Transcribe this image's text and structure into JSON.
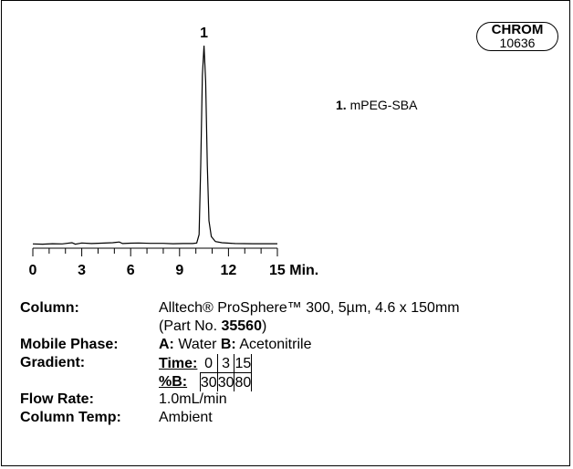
{
  "chart_data": {
    "type": "line",
    "xlabel": "",
    "x_unit": "Min.",
    "xlim": [
      0,
      15
    ],
    "xticks": [
      0,
      3,
      6,
      9,
      12,
      15
    ],
    "grid": false,
    "peak_labels": [
      {
        "label": "1",
        "x": 10.5
      }
    ],
    "series": [
      {
        "x": [
          0,
          0.6,
          1.2,
          1.8,
          2.4,
          2.6,
          3.0,
          3.6,
          4.2,
          4.9,
          5.3,
          5.5,
          6.0,
          6.5,
          7.2,
          8.0,
          8.6,
          9.2,
          9.8,
          10.05,
          10.2,
          10.3,
          10.4,
          10.5,
          10.6,
          10.7,
          10.8,
          10.95,
          11.2,
          11.6,
          12.4,
          13.5,
          15.0
        ],
        "y": [
          0.3,
          0.2,
          0.4,
          0.3,
          0.9,
          0.2,
          0.8,
          0.5,
          0.7,
          0.9,
          1.3,
          0.5,
          0.7,
          0.8,
          0.6,
          0.6,
          0.4,
          0.5,
          0.5,
          0.8,
          5,
          40,
          85,
          100,
          82,
          40,
          12,
          4,
          1.5,
          0.9,
          0.5,
          0.4,
          0.4
        ]
      }
    ]
  },
  "badge": {
    "line1": "CHROM",
    "line2": "10636"
  },
  "legend": [
    {
      "num": "1.",
      "name": "mPEG-SBA"
    }
  ],
  "info": {
    "column_label": "Column:",
    "column_value": "Alltech® ProSphere™ 300, 5µm, 4.6 x 150mm",
    "part_prefix": "(Part No. ",
    "part_number": "35560",
    "part_suffix": ")",
    "mobile_label": "Mobile Phase:",
    "mobile_a_key": "A:",
    "mobile_a_val": " Water ",
    "mobile_b_key": "B:",
    "mobile_b_val": " Acetonitrile",
    "gradient_label": "Gradient:",
    "gradient_time_label": "Time:",
    "gradient_times": [
      "0",
      "3",
      "15"
    ],
    "gradient_b_label": "%B:",
    "gradient_b_values": [
      "30",
      "30",
      "80"
    ],
    "flow_label": "Flow Rate:",
    "flow_value": "1.0mL/min",
    "temp_label": "Column Temp:",
    "temp_value": "Ambient"
  }
}
